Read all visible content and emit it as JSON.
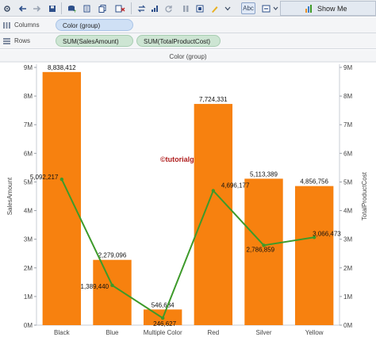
{
  "toolbar": {
    "format_button_label": "Abc",
    "show_me_label": "Show Me",
    "icons": [
      "gear-icon",
      "undo-icon",
      "redo-icon",
      "save-icon",
      "new-datasource-icon",
      "new-sheet-icon",
      "duplicate-icon",
      "clear-icon",
      "swap-icon",
      "sort-ascending-icon",
      "sort-descending-icon",
      "group-icon",
      "refresh-icon",
      "pause-icon",
      "marks-icon",
      "highlight-icon",
      "label-icon",
      "fit-icon",
      "presentation-icon",
      "show-me-icon"
    ]
  },
  "shelves": {
    "columns": {
      "label": "Columns",
      "pill": "Color (group)"
    },
    "rows": {
      "label": "Rows",
      "pills": [
        "SUM(SalesAmount)",
        "SUM(TotalProductCost)"
      ]
    }
  },
  "watermark": "©tutorialgateway.org",
  "colors": {
    "bar": "#f7810f",
    "line": "#3d9a2a",
    "pill_blue": "#cfe0f5",
    "pill_green": "#cde5d3"
  },
  "chart_data": {
    "type": "bar",
    "title": "Color (group)",
    "categories": [
      "Black",
      "Blue",
      "Multiple Color",
      "Red",
      "Silver",
      "Yellow"
    ],
    "ylabel": "SalesAmount",
    "ylabel_right": "TotalProductCost",
    "ylim": [
      0,
      9000000
    ],
    "yticks": [
      "0M",
      "1M",
      "2M",
      "3M",
      "4M",
      "5M",
      "6M",
      "7M",
      "8M",
      "9M"
    ],
    "y2ticks": [
      "0M",
      "1M",
      "2M",
      "3M",
      "4M",
      "5M",
      "6M",
      "7M",
      "8M",
      "9M"
    ],
    "series": [
      {
        "name": "SUM(SalesAmount)",
        "kind": "bar",
        "values": [
          8838412,
          2279096,
          546684,
          7724331,
          5113389,
          4856756
        ],
        "labels": [
          "8,838,412",
          "2,279,096",
          "546,684",
          "7,724,331",
          "5,113,389",
          "4,856,756"
        ]
      },
      {
        "name": "SUM(TotalProductCost)",
        "kind": "line",
        "values": [
          5092217,
          1389440,
          246627,
          4696177,
          2786859,
          3066473
        ],
        "labels": [
          "5,092,217",
          "1,389,440",
          "246,627",
          "4,696,177",
          "2,786,859",
          "3,066,473"
        ]
      }
    ],
    "grid": false,
    "dual_axis": true
  }
}
